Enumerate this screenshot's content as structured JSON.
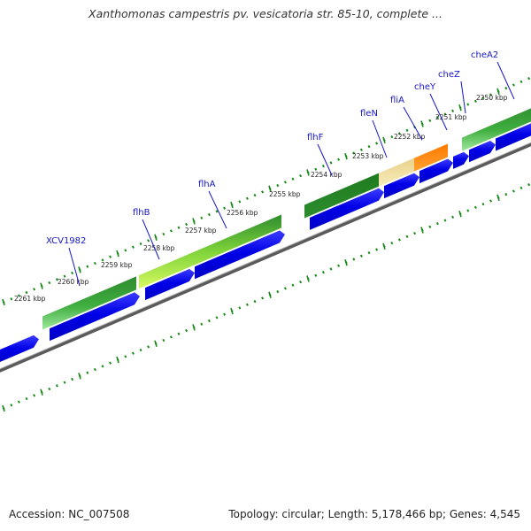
{
  "title": "Xanthomonas campestris pv. vesicatoria str. 85-10, complete ...",
  "footer": {
    "accession": "Accession: NC_007508",
    "topology": "Topology: circular; Length: 5,178,466 bp; Genes: 4,545"
  },
  "kbp_ticks": [
    "2250 kbp",
    "2251 kbp",
    "2252 kbp",
    "2253 kbp",
    "2254 kbp",
    "2255 kbp",
    "2256 kbp",
    "2257 kbp",
    "2258 kbp",
    "2259 kbp",
    "2260 kbp",
    "2261 kbp"
  ],
  "gene_labels": [
    "cheA2",
    "cheZ",
    "cheY",
    "fliA",
    "fleN",
    "flhF",
    "flhA",
    "flhB",
    "XCV1982"
  ],
  "colors": {
    "gene_label": "#1515c8",
    "cds_blue": "#0000e6",
    "cds_blue_light": "#5a5aff",
    "feature_green_dark": "#1e7a1e",
    "feature_green_light": "#8ee08e",
    "feature_lime": "#c8f050",
    "feature_orange": "#ff8c00",
    "feature_tan": "#f0dc9a",
    "backbone": "#808080",
    "tick": "#1a8a1a"
  }
}
